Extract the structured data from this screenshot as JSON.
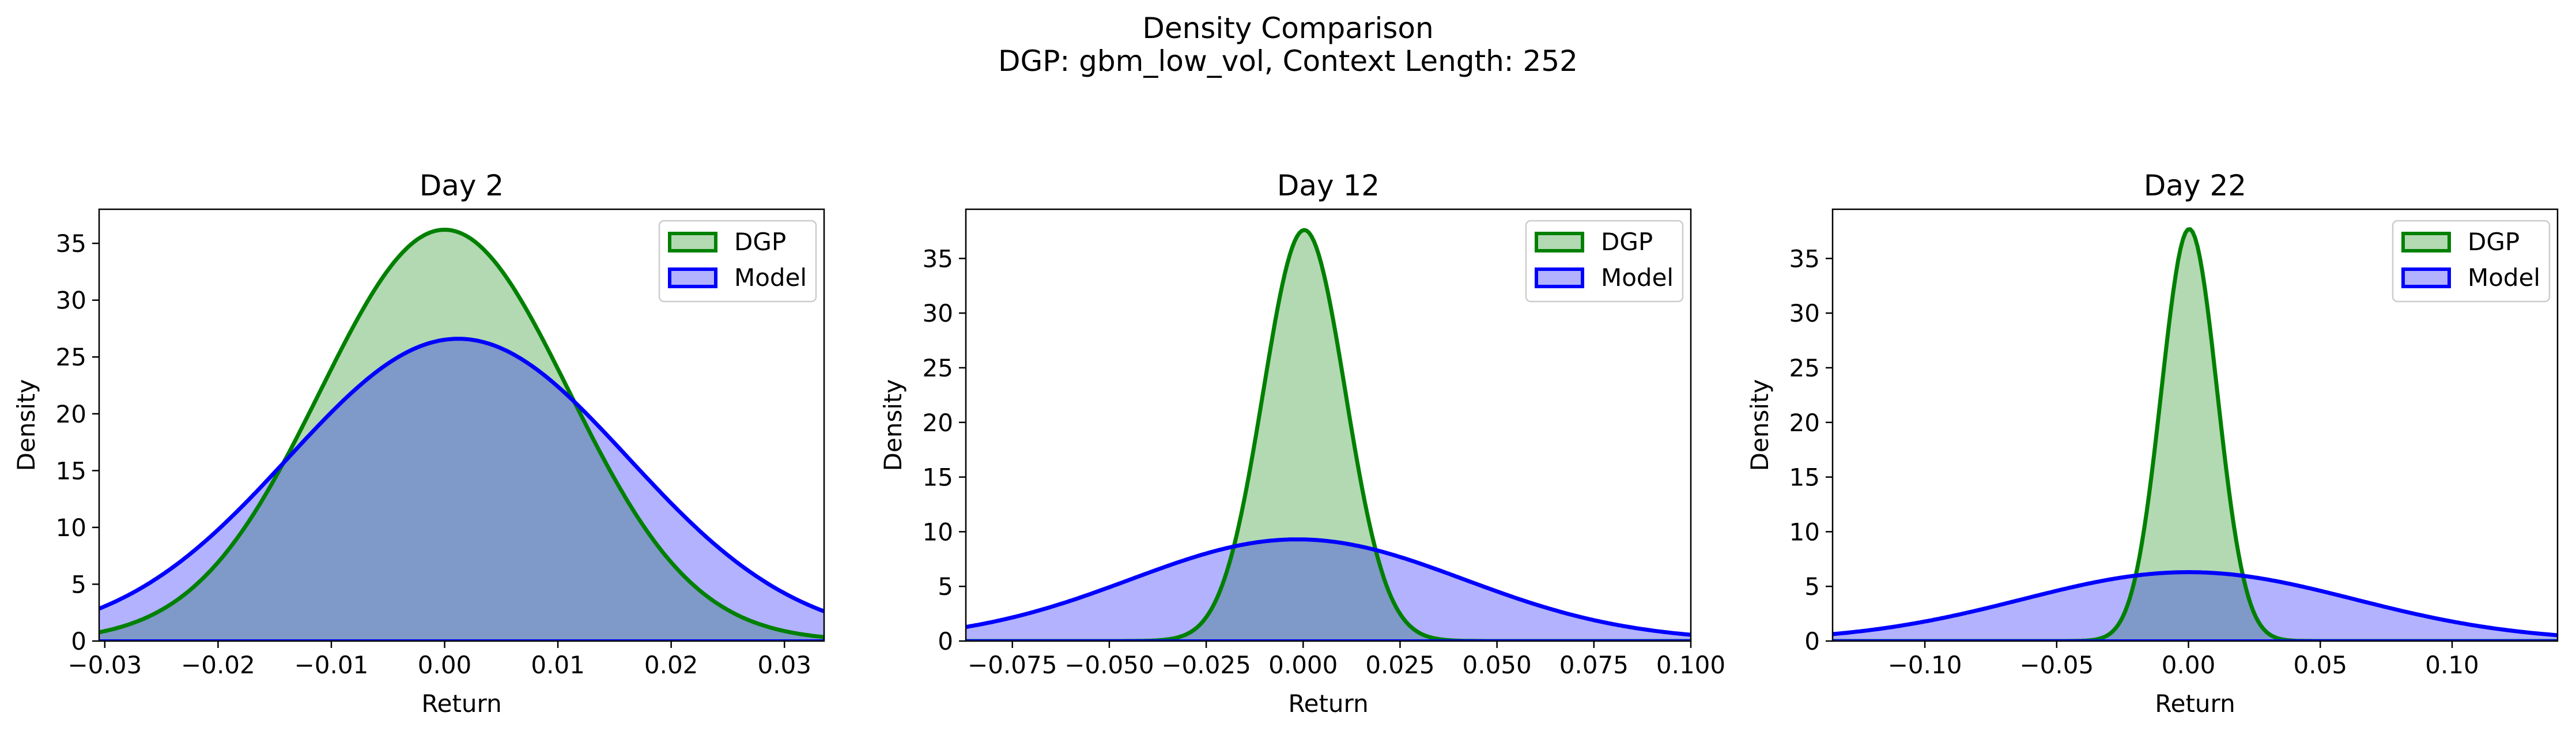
{
  "figure": {
    "title_line1": "Density Comparison",
    "title_line2": "DGP: gbm_low_vol, Context Length: 252"
  },
  "colors": {
    "dgp_line": "#008000",
    "dgp_fill": "#b2d9b2",
    "model_line": "#0000ff",
    "model_fill": "#b2b2ff",
    "overlap_fill": "#7f99c8"
  },
  "chart_data": [
    {
      "type": "area",
      "title": "Day 2",
      "xlabel": "Return",
      "ylabel": "Density",
      "xlim": [
        -0.0305,
        0.0335
      ],
      "ylim": [
        0,
        38
      ],
      "xticks": [
        -0.03,
        -0.02,
        -0.01,
        0.0,
        0.01,
        0.02,
        0.03
      ],
      "xtick_labels": [
        "−0.03",
        "−0.02",
        "−0.01",
        "0.00",
        "0.01",
        "0.02",
        "0.03"
      ],
      "yticks": [
        0,
        5,
        10,
        15,
        20,
        25,
        30,
        35
      ],
      "ytick_labels": [
        "0",
        "5",
        "10",
        "15",
        "20",
        "25",
        "30",
        "35"
      ],
      "legend_position": "upper right",
      "series": [
        {
          "name": "DGP",
          "peak_x": 0.0,
          "peak_y": 36.2,
          "sd": 0.011
        },
        {
          "name": "Model",
          "peak_x": 0.0012,
          "peak_y": 26.6,
          "sd": 0.015
        }
      ]
    },
    {
      "type": "area",
      "title": "Day 12",
      "xlabel": "Return",
      "ylabel": "Density",
      "xlim": [
        -0.087,
        0.1
      ],
      "ylim": [
        0,
        39.5
      ],
      "xticks": [
        -0.075,
        -0.05,
        -0.025,
        0.0,
        0.025,
        0.05,
        0.075,
        0.1
      ],
      "xtick_labels": [
        "−0.075",
        "−0.050",
        "−0.025",
        "0.000",
        "0.025",
        "0.050",
        "0.075",
        "0.100"
      ],
      "yticks": [
        0,
        5,
        10,
        15,
        20,
        25,
        30,
        35
      ],
      "ytick_labels": [
        "0",
        "5",
        "10",
        "15",
        "20",
        "25",
        "30",
        "35"
      ],
      "legend_position": "upper right",
      "series": [
        {
          "name": "DGP",
          "peak_x": 0.0003,
          "peak_y": 37.6,
          "sd": 0.0106
        },
        {
          "name": "Model",
          "peak_x": -0.0015,
          "peak_y": 9.3,
          "sd": 0.043
        }
      ]
    },
    {
      "type": "area",
      "title": "Day 22",
      "xlabel": "Return",
      "ylabel": "Density",
      "xlim": [
        -0.135,
        0.14
      ],
      "ylim": [
        0,
        39.5
      ],
      "xticks": [
        -0.1,
        -0.05,
        0.0,
        0.05,
        0.1
      ],
      "xtick_labels": [
        "−0.10",
        "−0.05",
        "0.00",
        "0.05",
        "0.10"
      ],
      "yticks": [
        0,
        5,
        10,
        15,
        20,
        25,
        30,
        35
      ],
      "ytick_labels": [
        "0",
        "5",
        "10",
        "15",
        "20",
        "25",
        "30",
        "35"
      ],
      "legend_position": "upper right",
      "series": [
        {
          "name": "DGP",
          "peak_x": 0.0003,
          "peak_y": 37.7,
          "sd": 0.0106
        },
        {
          "name": "Model",
          "peak_x": 0.0,
          "peak_y": 6.3,
          "sd": 0.063
        }
      ]
    }
  ]
}
